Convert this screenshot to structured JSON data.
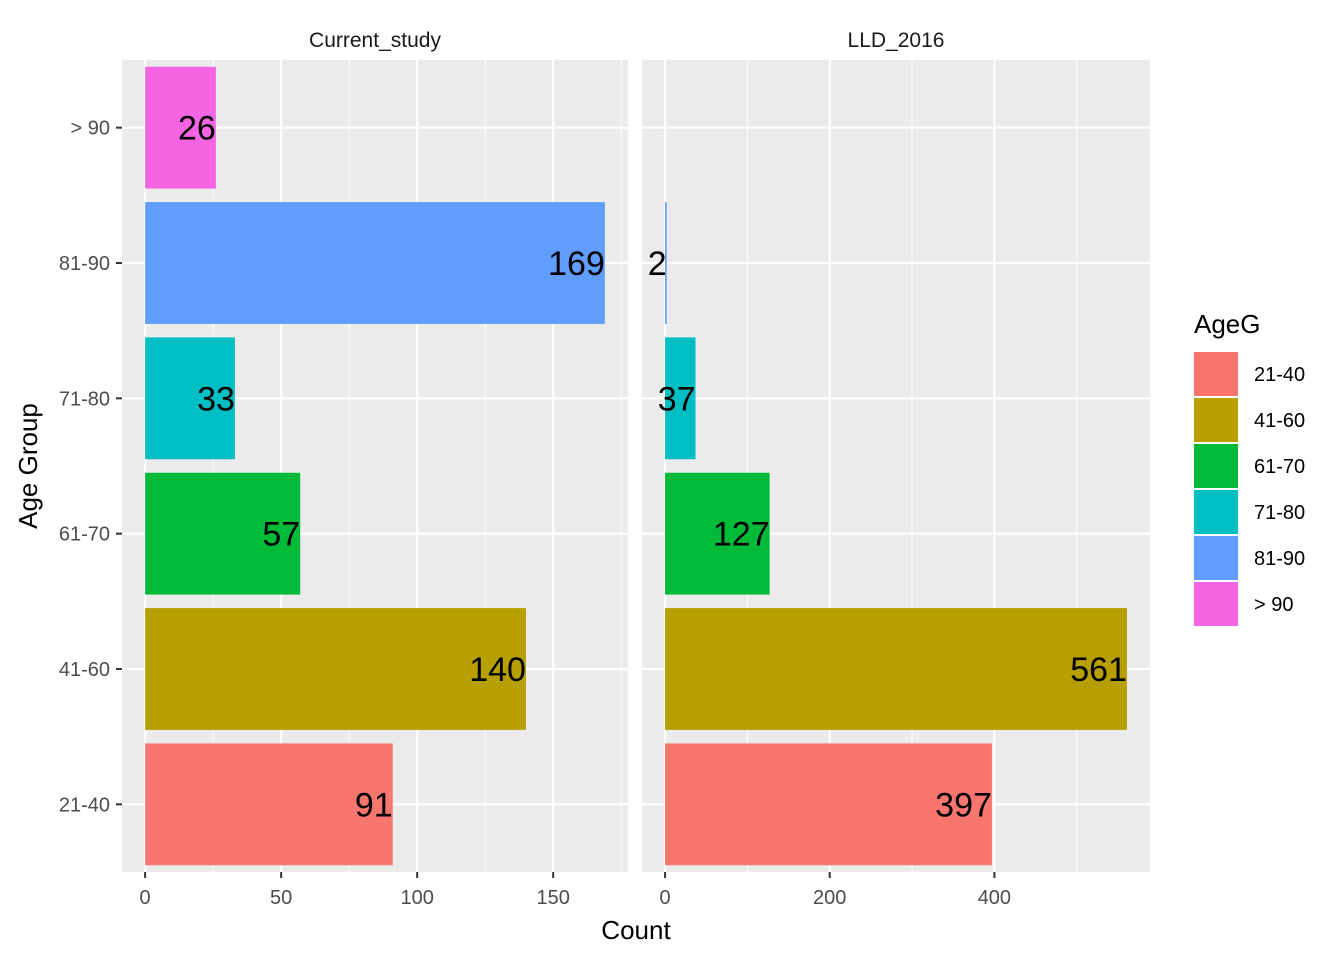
{
  "chart_data": {
    "type": "bar",
    "orientation": "horizontal",
    "xlabel": "Count",
    "ylabel": "Age Group",
    "categories": [
      "21-40",
      "41-60",
      "61-70",
      "71-80",
      "81-90",
      "> 90"
    ],
    "colors": {
      "21-40": "#F8766D",
      "41-60": "#B79F00",
      "61-70": "#00BA38",
      "71-80": "#00BFC4",
      "81-90": "#619CFF",
      "> 90": "#F564E3"
    },
    "legend": {
      "title": "AgeG",
      "position": "right",
      "entries": [
        "21-40",
        "41-60",
        "61-70",
        "71-80",
        "81-90",
        "> 90"
      ]
    },
    "panels": [
      {
        "title": "Current_study",
        "values": [
          91,
          140,
          57,
          33,
          169,
          26
        ],
        "labels": [
          "91",
          "140",
          "57",
          "33",
          "169",
          "26"
        ],
        "xlim": [
          -8.5,
          177.5
        ],
        "xticks": [
          0,
          50,
          100,
          150
        ],
        "xtick_labels": [
          "0",
          "50",
          "100",
          "150"
        ]
      },
      {
        "title": "LLD_2016",
        "values": [
          397,
          561,
          127,
          37,
          2,
          0
        ],
        "labels": [
          "397",
          "561",
          "127",
          "37",
          "2",
          ""
        ],
        "xlim": [
          -28,
          589
        ],
        "xticks": [
          0,
          200,
          400
        ],
        "xtick_labels": [
          "0",
          "200",
          "400"
        ]
      }
    ],
    "grid": true
  }
}
